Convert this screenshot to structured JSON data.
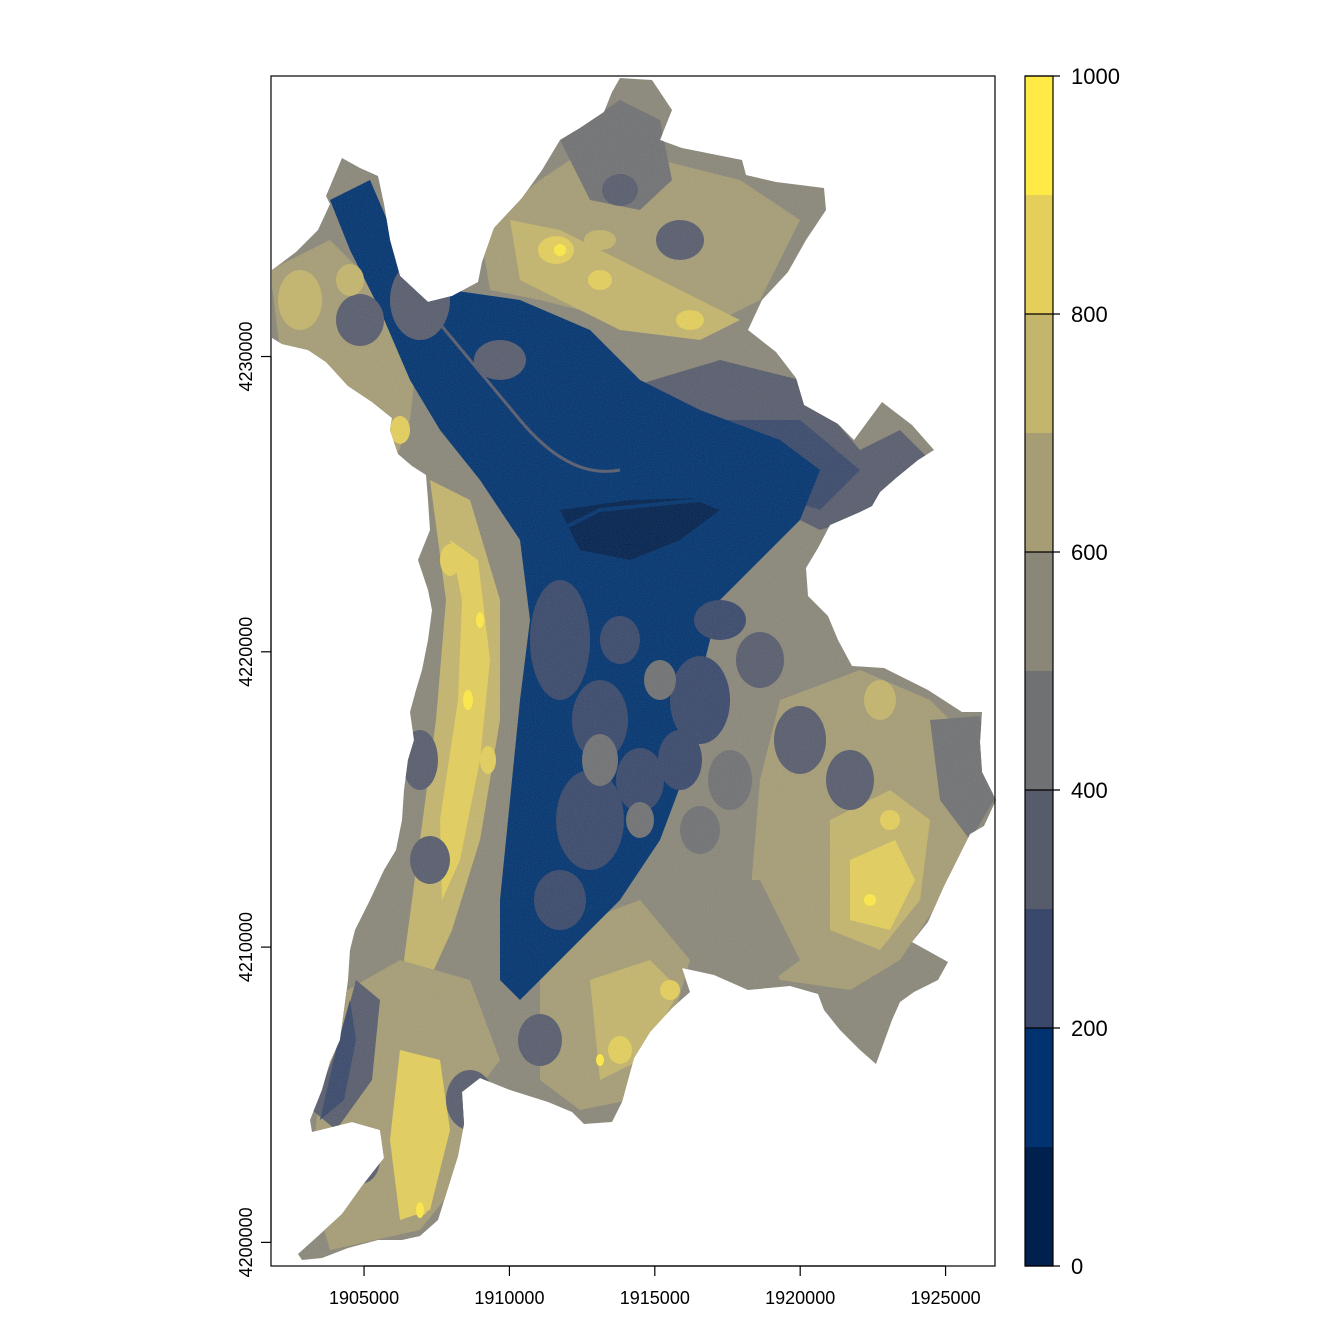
{
  "map": {
    "type": "raster-map",
    "palette": [
      "#00204D",
      "#00336F",
      "#39486B",
      "#575C6D",
      "#707173",
      "#8A8779",
      "#A69D75",
      "#C4B56C",
      "#E4CF5B",
      "#FFEA46"
    ],
    "x_axis": {
      "ticks": [
        1905000,
        1910000,
        1915000,
        1920000,
        1925000
      ],
      "tick_labels": [
        "1905000",
        "1910000",
        "1915000",
        "1920000",
        "1925000"
      ],
      "range": [
        1901800,
        1926700
      ]
    },
    "y_axis": {
      "ticks": [
        4200000,
        4210000,
        4220000,
        4230000
      ],
      "tick_labels": [
        "4200000",
        "4210000",
        "4220000",
        "4230000"
      ],
      "range": [
        4199200,
        4239500
      ]
    }
  },
  "legend": {
    "range": [
      0,
      1000
    ],
    "breaks": [
      0,
      100,
      200,
      300,
      400,
      500,
      600,
      700,
      800,
      900,
      1000
    ],
    "labelled_values": [
      0,
      200,
      400,
      600,
      800,
      1000
    ],
    "labels": [
      "0",
      "200",
      "400",
      "600",
      "800",
      "1000"
    ]
  }
}
